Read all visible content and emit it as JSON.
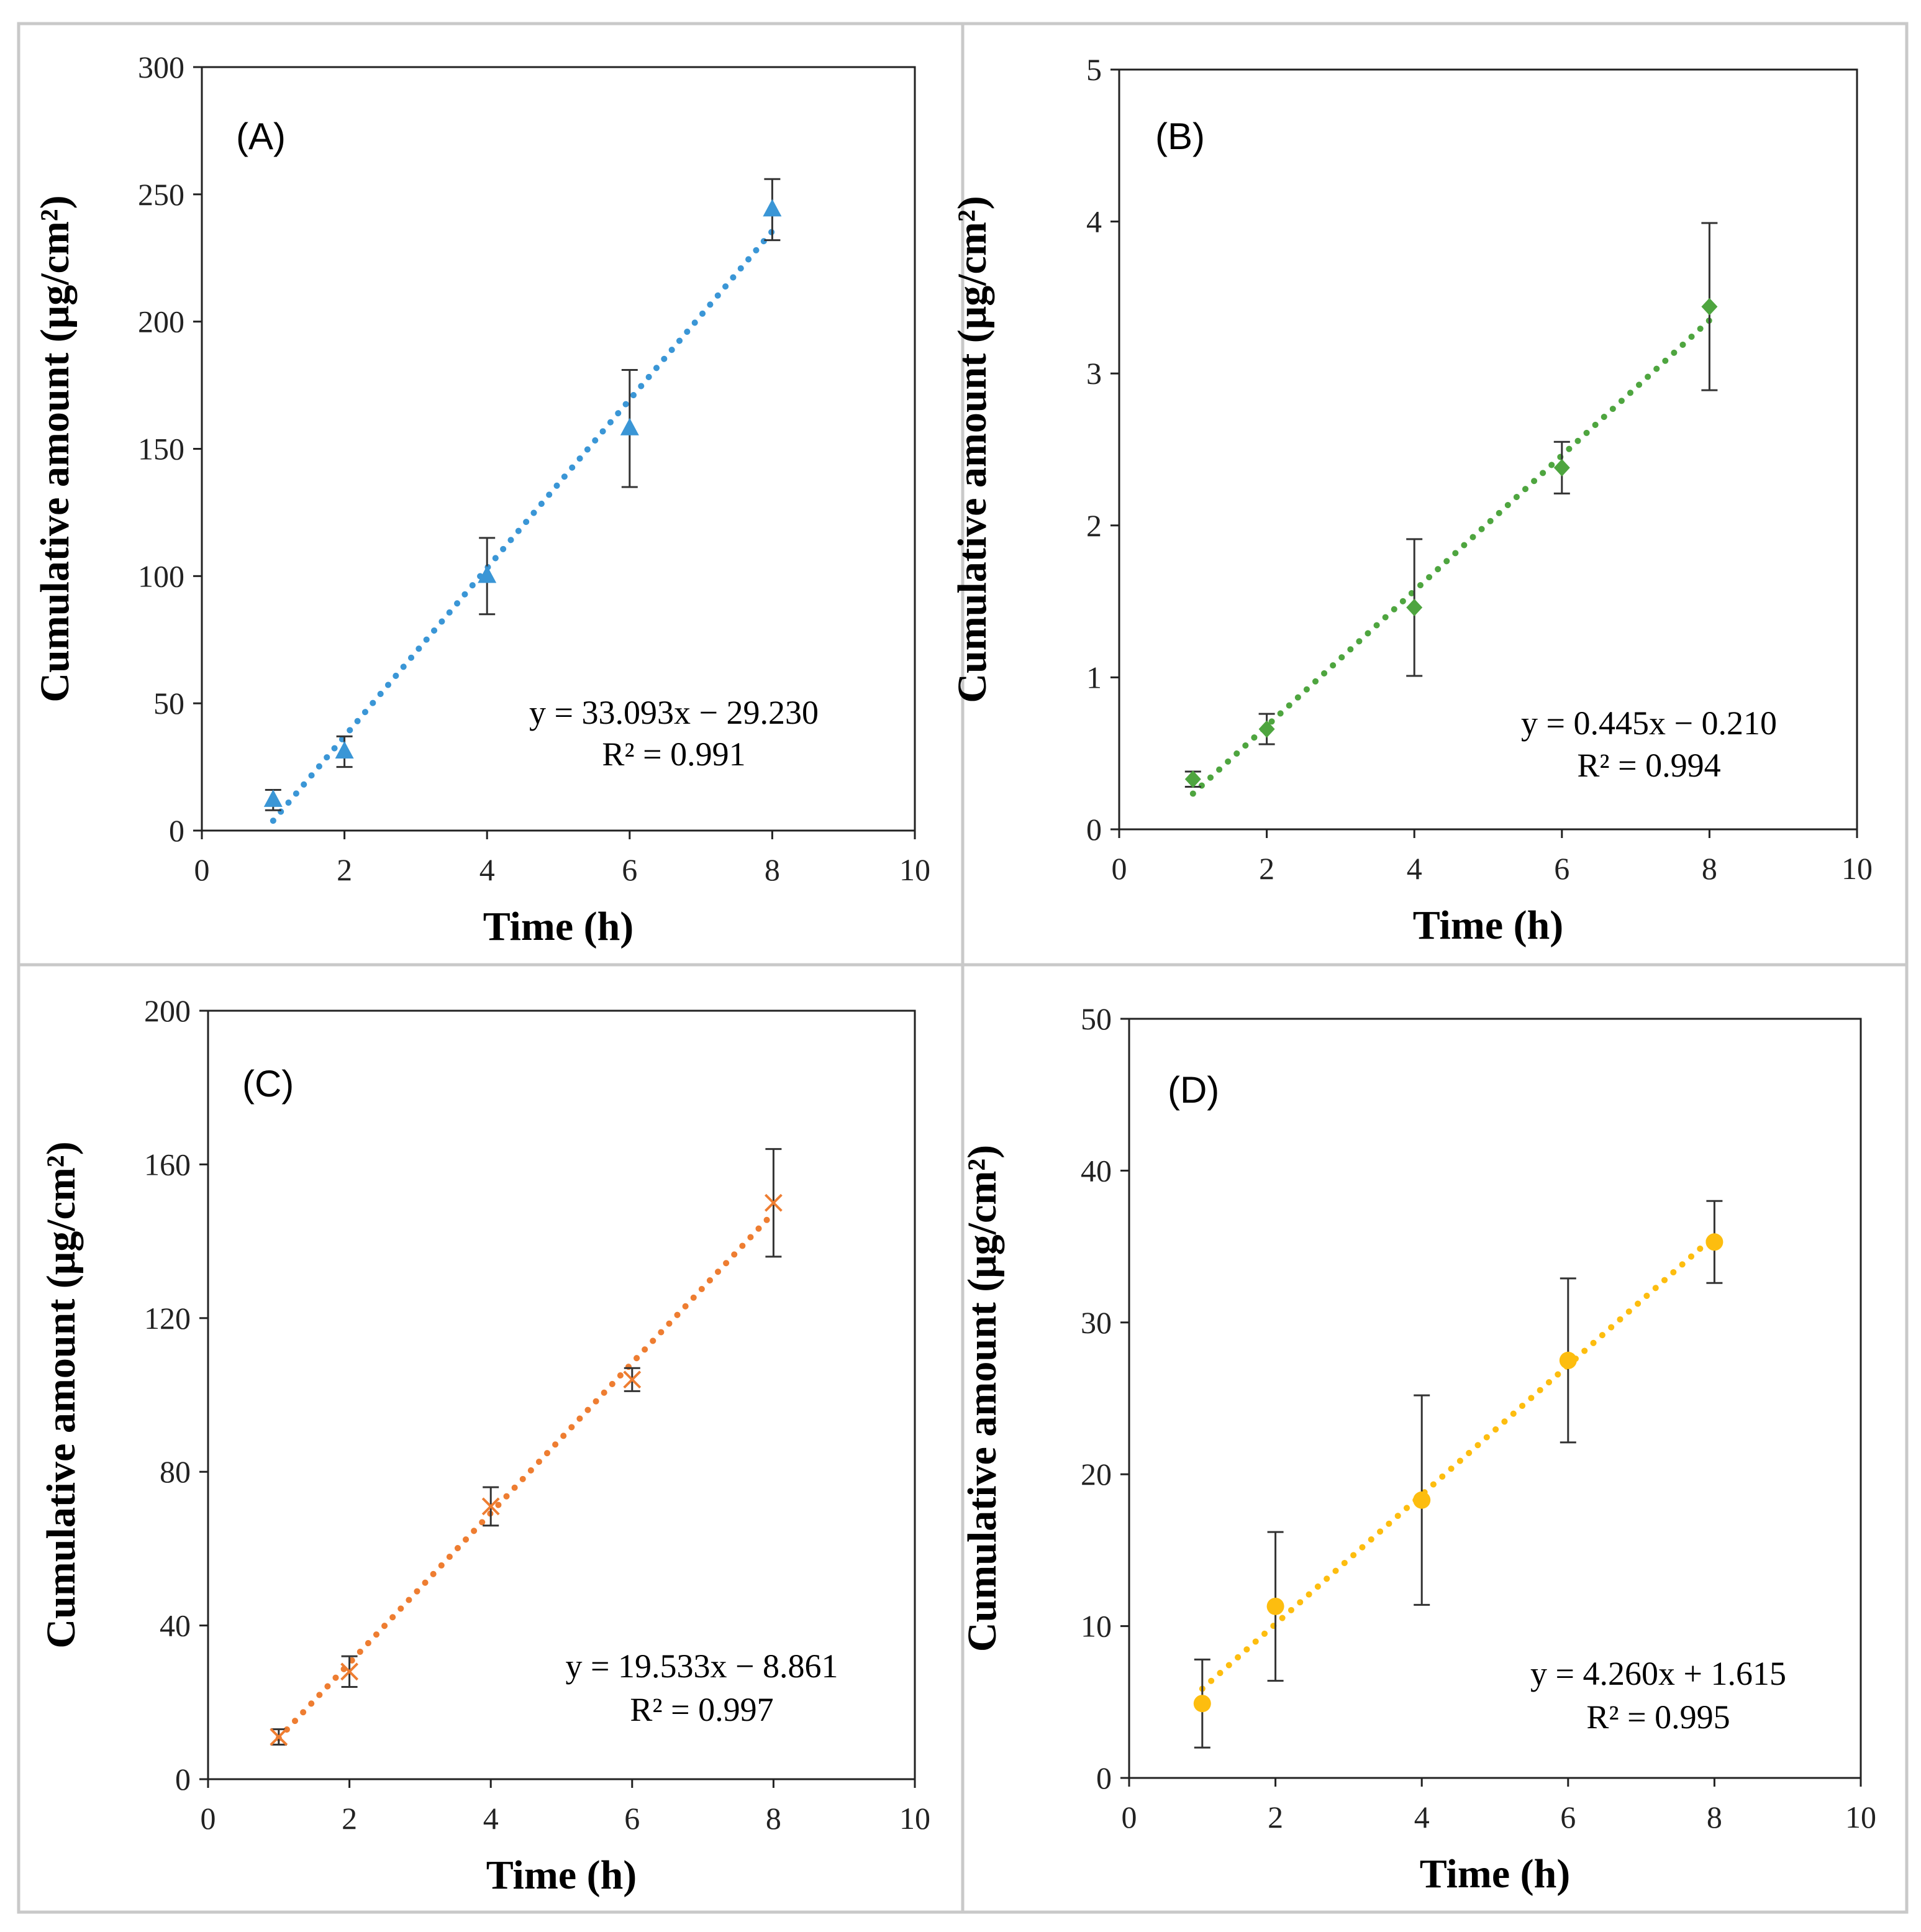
{
  "chart_data": [
    {
      "type": "scatter",
      "panel_label": "(A)",
      "xlabel": "Time (h)",
      "ylabel": "Cumulative amount (μg/cm²)",
      "xlim": [
        0,
        10
      ],
      "ylim": [
        0,
        300
      ],
      "xticks": [
        0,
        2,
        4,
        6,
        8,
        10
      ],
      "yticks": [
        0,
        50,
        100,
        150,
        200,
        250,
        300
      ],
      "color": "#3a96d6",
      "marker": "triangle",
      "x": [
        1,
        2,
        4,
        6,
        8
      ],
      "y": [
        12,
        31,
        100,
        158,
        244
      ],
      "err": [
        4,
        6,
        15,
        23,
        12
      ],
      "trendline": {
        "slope": 33.093,
        "intercept": -29.23
      },
      "equation": "y = 33.093x − 29.230",
      "r2": "R² = 0.991"
    },
    {
      "type": "scatter",
      "panel_label": "(B)",
      "xlabel": "Time (h)",
      "ylabel": "Cumulative amount (μg/cm²)",
      "xlim": [
        0,
        10
      ],
      "ylim": [
        0,
        5
      ],
      "xticks": [
        0,
        2,
        4,
        6,
        8,
        10
      ],
      "yticks": [
        0,
        1,
        2,
        3,
        4,
        5
      ],
      "color": "#4ea53f",
      "marker": "diamond",
      "x": [
        1,
        2,
        4,
        6,
        8
      ],
      "y": [
        0.33,
        0.66,
        1.46,
        2.38,
        3.44
      ],
      "err": [
        0.05,
        0.1,
        0.45,
        0.17,
        0.55
      ],
      "trendline": {
        "slope": 0.445,
        "intercept": -0.21
      },
      "equation": "y = 0.445x  − 0.210",
      "r2": "R² = 0.994"
    },
    {
      "type": "scatter",
      "panel_label": "(C)",
      "xlabel": "Time (h)",
      "ylabel": "Cumulative amount (μg/cm²)",
      "xlim": [
        0,
        10
      ],
      "ylim": [
        0,
        200
      ],
      "xticks": [
        0,
        2,
        4,
        6,
        8,
        10
      ],
      "yticks": [
        0,
        40,
        80,
        120,
        160,
        200
      ],
      "color": "#ee7d31",
      "marker": "x",
      "x": [
        1,
        2,
        4,
        6,
        8
      ],
      "y": [
        11,
        28,
        71,
        104,
        150
      ],
      "err": [
        2,
        4,
        5,
        3,
        14
      ],
      "trendline": {
        "slope": 19.533,
        "intercept": -8.861
      },
      "equation": "y = 19.533x  − 8.861",
      "r2": "R² = 0.997"
    },
    {
      "type": "scatter",
      "panel_label": "(D)",
      "xlabel": "Time (h)",
      "ylabel": "Cumulative amount (μg/cm²)",
      "xlim": [
        0,
        10
      ],
      "ylim": [
        0,
        50
      ],
      "xticks": [
        0,
        2,
        4,
        6,
        8,
        10
      ],
      "yticks": [
        0,
        10,
        20,
        30,
        40,
        50
      ],
      "color": "#fdbd0f",
      "marker": "circle",
      "x": [
        1,
        2,
        4,
        6,
        8
      ],
      "y": [
        4.9,
        11.3,
        18.3,
        27.5,
        35.3
      ],
      "err": [
        2.9,
        4.9,
        6.9,
        5.4,
        2.7
      ],
      "trendline": {
        "slope": 4.26,
        "intercept": 1.615
      },
      "equation": "y = 4.260x + 1.615",
      "r2": "R² = 0.995"
    }
  ]
}
